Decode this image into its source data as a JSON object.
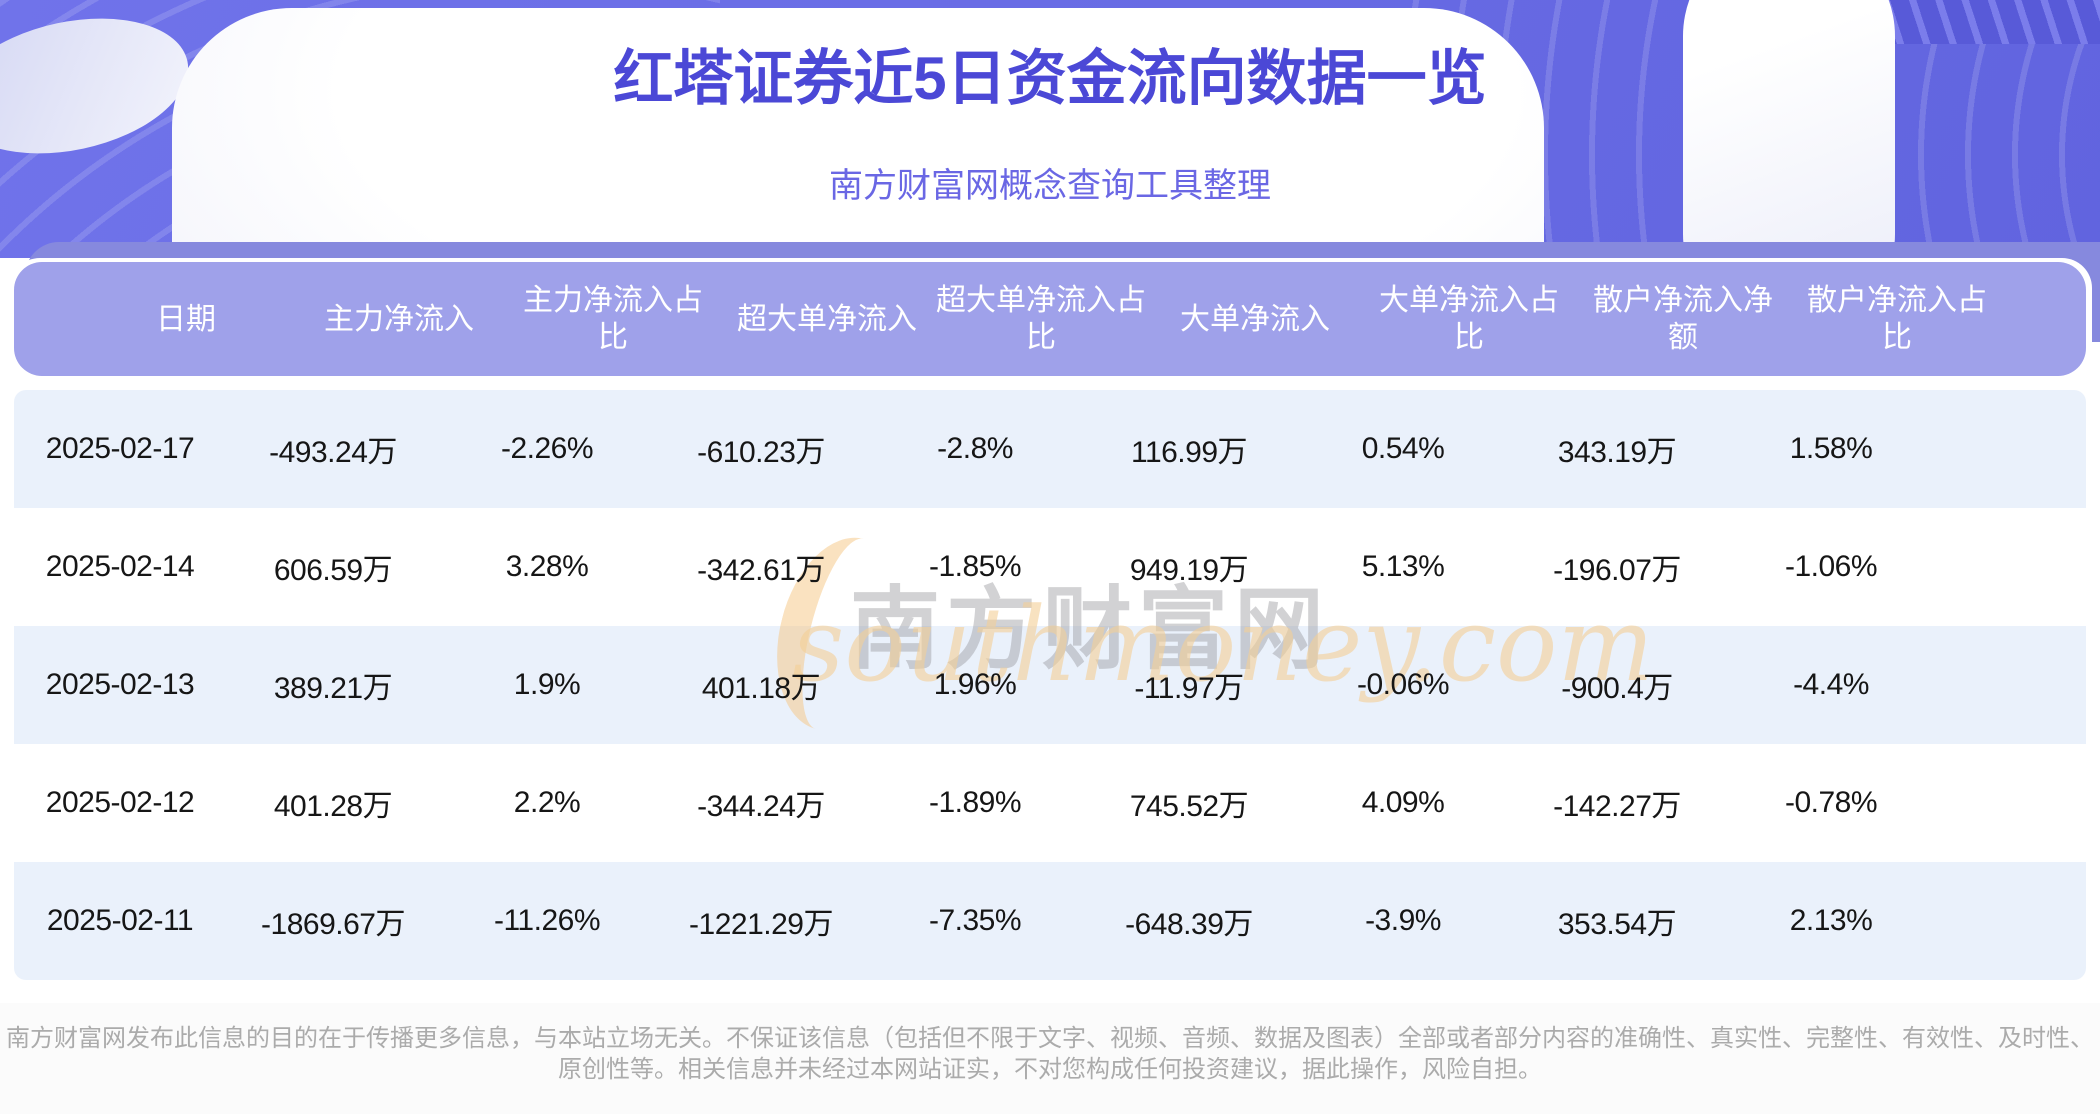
{
  "banner": {
    "title": "红塔证券近5日资金流向数据一览",
    "subtitle": "南方财富网概念查询工具整理"
  },
  "watermark": {
    "cn": "南方财富网",
    "en": "southmoney.com"
  },
  "table": {
    "display_headers": [
      "日期",
      "主力净流入",
      "主力净流入占\n比",
      "超大单净流入",
      "超大单净流入占\n比",
      "大单净流入",
      "大单净流入占\n比",
      "散户净流入净\n额",
      "散户净流入占\n比"
    ]
  },
  "chart_data": {
    "type": "table",
    "title": "红塔证券近5日资金流向数据一览",
    "columns": [
      "日期",
      "主力净流入",
      "主力净流入占比",
      "超大单净流入",
      "超大单净流入占比",
      "大单净流入",
      "大单净流入占比",
      "散户净流入净额",
      "散户净流入占比"
    ],
    "rows": [
      [
        "2025-02-17",
        "-493.24万",
        "-2.26%",
        "-610.23万",
        "-2.8%",
        "116.99万",
        "0.54%",
        "343.19万",
        "1.58%"
      ],
      [
        "2025-02-14",
        "606.59万",
        "3.28%",
        "-342.61万",
        "-1.85%",
        "949.19万",
        "5.13%",
        "-196.07万",
        "-1.06%"
      ],
      [
        "2025-02-13",
        "389.21万",
        "1.9%",
        "401.18万",
        "1.96%",
        "-11.97万",
        "-0.06%",
        "-900.4万",
        "-4.4%"
      ],
      [
        "2025-02-12",
        "401.28万",
        "2.2%",
        "-344.24万",
        "-1.89%",
        "745.52万",
        "4.09%",
        "-142.27万",
        "-0.78%"
      ],
      [
        "2025-02-11",
        "-1869.67万",
        "-11.26%",
        "-1221.29万",
        "-7.35%",
        "-648.39万",
        "-3.9%",
        "353.54万",
        "2.13%"
      ]
    ]
  },
  "footer": {
    "disclaimer": "南方财富网发布此信息的目的在于传播更多信息，与本站立场无关。不保证该信息（包括但不限于文字、视频、音频、数据及图表）全部或者部分内容的准确性、真实性、完整性、有效性、及时性、原创性等。相关信息并未经过本网站证实，不对您构成任何投资建议，据此操作，风险自担。"
  },
  "colors": {
    "banner-top": "#7073EA",
    "banner-bottom": "#6164DF",
    "ring": "rgba(255,255,255,0.14)",
    "stripes-dark": "#585AD8",
    "band": "#8689DE",
    "header-bg": "#9FA1EA",
    "header-text": "#FFFFFF",
    "row-alt": "#EAF1FB",
    "cell-text": "#161616",
    "title": "#4B48D6",
    "subtitle": "#6A67E4",
    "watermark-cn": "rgba(155,155,160,0.45)",
    "watermark-en": "rgba(243,206,150,0.60)",
    "swoosh": "rgba(246,198,130,0.50)",
    "footer-bg": "#FBFBFB",
    "footer-text": "#ABABAB"
  }
}
